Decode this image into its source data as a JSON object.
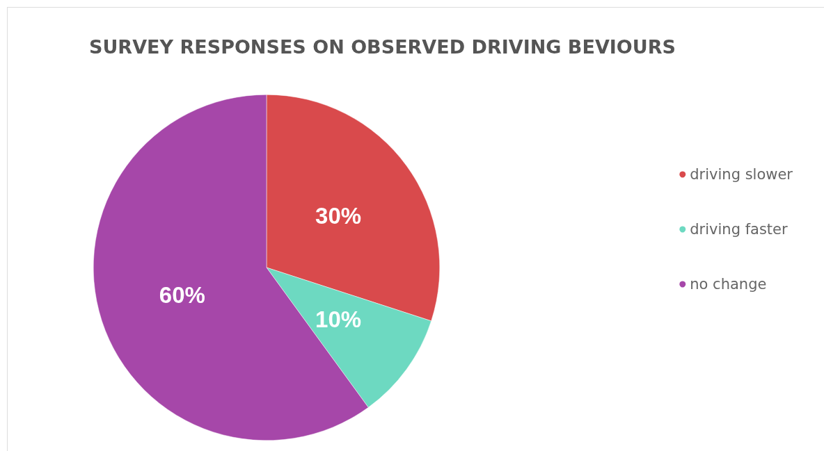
{
  "chart_data": {
    "type": "pie",
    "title": "SURVEY RESPONSES ON OBSERVED DRIVING BEVIOURS",
    "categories": [
      "driving slower",
      "driving faster",
      "no change"
    ],
    "values": [
      30,
      10,
      60
    ],
    "value_labels": [
      "30%",
      "10%",
      "60%"
    ],
    "colors": [
      "#d94a4c",
      "#6dd9c1",
      "#a647a9"
    ],
    "legend": "right"
  }
}
